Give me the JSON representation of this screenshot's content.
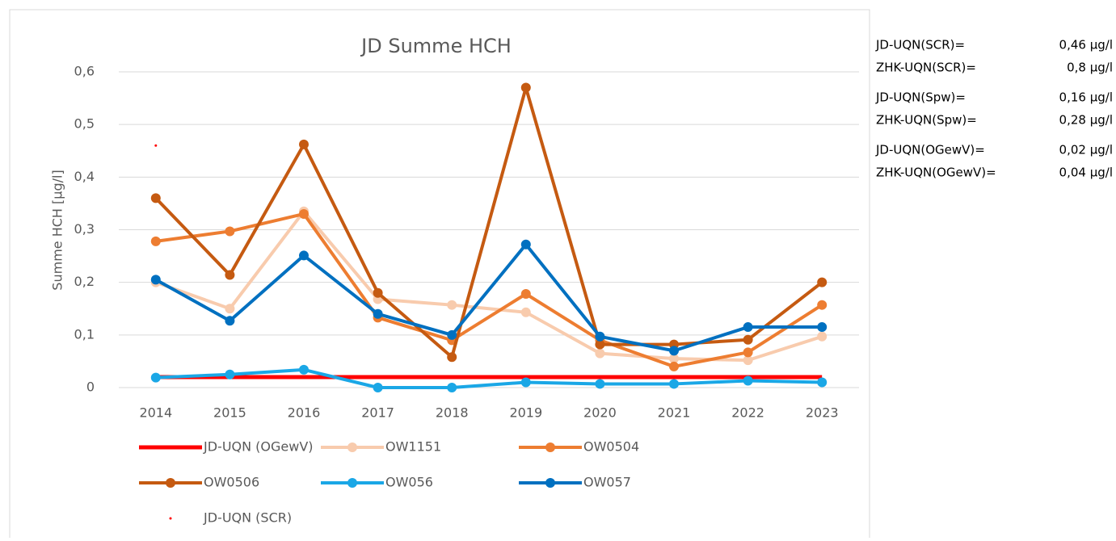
{
  "chart_data": {
    "type": "line",
    "title": "JD Summe HCH",
    "y_label": "Summe HCH [µg/l]",
    "categories": [
      "2014",
      "2015",
      "2016",
      "2017",
      "2018",
      "2019",
      "2020",
      "2021",
      "2022",
      "2023"
    ],
    "ylim": [
      0,
      0.6
    ],
    "yticks": [
      0,
      {
        "value": 0.1,
        "label": "0,1"
      },
      {
        "value": 0.2,
        "label": "0,2"
      },
      {
        "value": 0.3,
        "label": "0,3"
      },
      {
        "value": 0.4,
        "label": "0,4"
      },
      {
        "value": 0.5,
        "label": "0,5"
      },
      {
        "value": 0.6,
        "label": "0,6"
      }
    ],
    "grid": true,
    "legend": "bottom",
    "series": [
      {
        "name": "JD-UQN (OGewV)",
        "color": "#ff0000",
        "line": true,
        "markers": false,
        "values": [
          0.02,
          0.02,
          0.02,
          0.02,
          0.02,
          0.02,
          0.02,
          0.02,
          0.02,
          0.02
        ]
      },
      {
        "name": "OW1151",
        "color": "#f8cbad",
        "line": true,
        "markers": true,
        "values": [
          0.2,
          0.15,
          0.335,
          0.168,
          0.157,
          0.143,
          0.065,
          0.055,
          0.052,
          0.097
        ]
      },
      {
        "name": "OW0504",
        "color": "#ed7d31",
        "line": true,
        "markers": true,
        "values": [
          0.278,
          0.297,
          0.33,
          0.133,
          0.09,
          0.178,
          0.09,
          0.04,
          0.067,
          0.157
        ]
      },
      {
        "name": "OW0506",
        "color": "#c55a11",
        "line": true,
        "markers": true,
        "values": [
          0.36,
          0.214,
          0.462,
          0.18,
          0.058,
          0.57,
          0.082,
          0.082,
          0.091,
          0.2
        ]
      },
      {
        "name": "OW056",
        "color": "#1aa7e6",
        "line": true,
        "markers": true,
        "values": [
          0.019,
          0.025,
          0.034,
          0,
          0,
          0.01,
          0.007,
          0.007,
          0.013,
          0.01
        ]
      },
      {
        "name": "OW057",
        "color": "#0070c0",
        "line": true,
        "markers": true,
        "values": [
          0.205,
          0.127,
          0.251,
          0.14,
          0.1,
          0.272,
          0.097,
          0.07,
          0.115,
          0.115
        ]
      },
      {
        "name": "JD-UQN (SCR)",
        "color": "#ff0000",
        "line": false,
        "markers": true,
        "values": [
          0.46,
          null,
          null,
          null,
          null,
          null,
          null,
          null,
          null,
          null
        ]
      }
    ],
    "annotations": [
      {
        "label": "JD-UQN(SCR)=",
        "value": "0,46 µg/l"
      },
      {
        "label": "ZHK-UQN(SCR)=",
        "value": "0,8   µg/l"
      },
      {
        "label": "JD-UQN(Spw)=",
        "value": "0,16 µg/l"
      },
      {
        "label": "ZHK-UQN(Spw)=",
        "value": "0,28 µg/l"
      },
      {
        "label": "JD-UQN(OGewV)=",
        "value": "0,02 µg/l"
      },
      {
        "label": "ZHK-UQN(OGewV)=",
        "value": "0,04 µg/l"
      }
    ]
  }
}
